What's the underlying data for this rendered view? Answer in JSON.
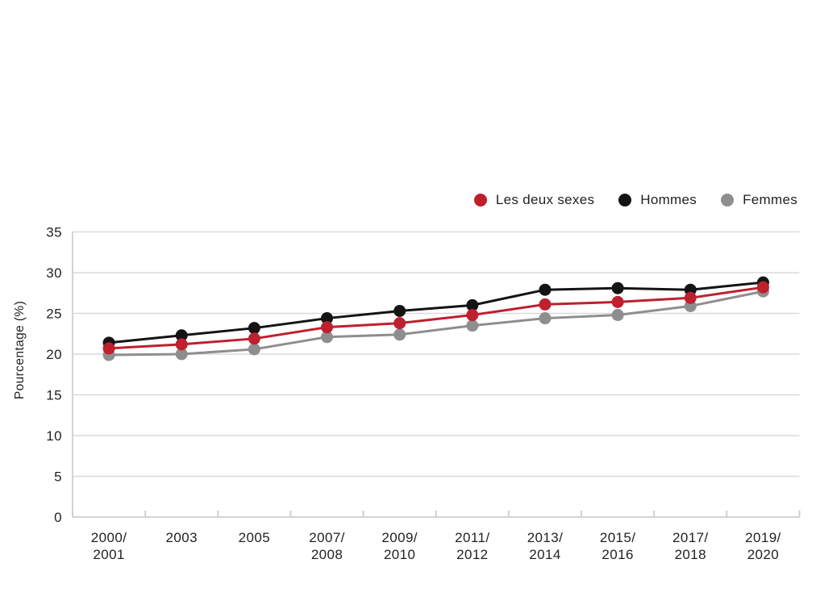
{
  "legend": {
    "items": [
      {
        "label": "Les deux sexes",
        "color": "#be202d"
      },
      {
        "label": "Hommes",
        "color": "#141414"
      },
      {
        "label": "Femmes",
        "color": "#8e8e8e"
      }
    ]
  },
  "chart_data": {
    "type": "line",
    "title": "",
    "xlabel": "",
    "ylabel": "Pourcentage (%)",
    "ylim": [
      0,
      35
    ],
    "yticks": [
      0,
      5,
      10,
      15,
      20,
      25,
      30,
      35
    ],
    "grid": "horizontal",
    "legend_position": "top-right",
    "categories": [
      [
        "2000/",
        "2001"
      ],
      [
        "2003"
      ],
      [
        "2005"
      ],
      [
        "2007/",
        "2008"
      ],
      [
        "2009/",
        "2010"
      ],
      [
        "2011/",
        "2012"
      ],
      [
        "2013/",
        "2014"
      ],
      [
        "2015/",
        "2016"
      ],
      [
        "2017/",
        "2018"
      ],
      [
        "2019/",
        "2020"
      ]
    ],
    "series": [
      {
        "name": "Les deux sexes",
        "color": "#be202d",
        "values": [
          20.7,
          21.2,
          21.9,
          23.3,
          23.8,
          24.8,
          26.1,
          26.4,
          26.9,
          28.2
        ]
      },
      {
        "name": "Hommes",
        "color": "#141414",
        "values": [
          21.4,
          22.3,
          23.2,
          24.4,
          25.3,
          26.0,
          27.9,
          28.1,
          27.9,
          28.8
        ]
      },
      {
        "name": "Femmes",
        "color": "#8e8e8e",
        "values": [
          19.9,
          20.0,
          20.6,
          22.1,
          22.4,
          23.5,
          24.4,
          24.8,
          25.9,
          27.7
        ]
      }
    ],
    "colors": {
      "gridline": "#dadada",
      "axis": "#d4d4d4",
      "tick": "#cfcfcf",
      "text": "#221f1f"
    }
  }
}
